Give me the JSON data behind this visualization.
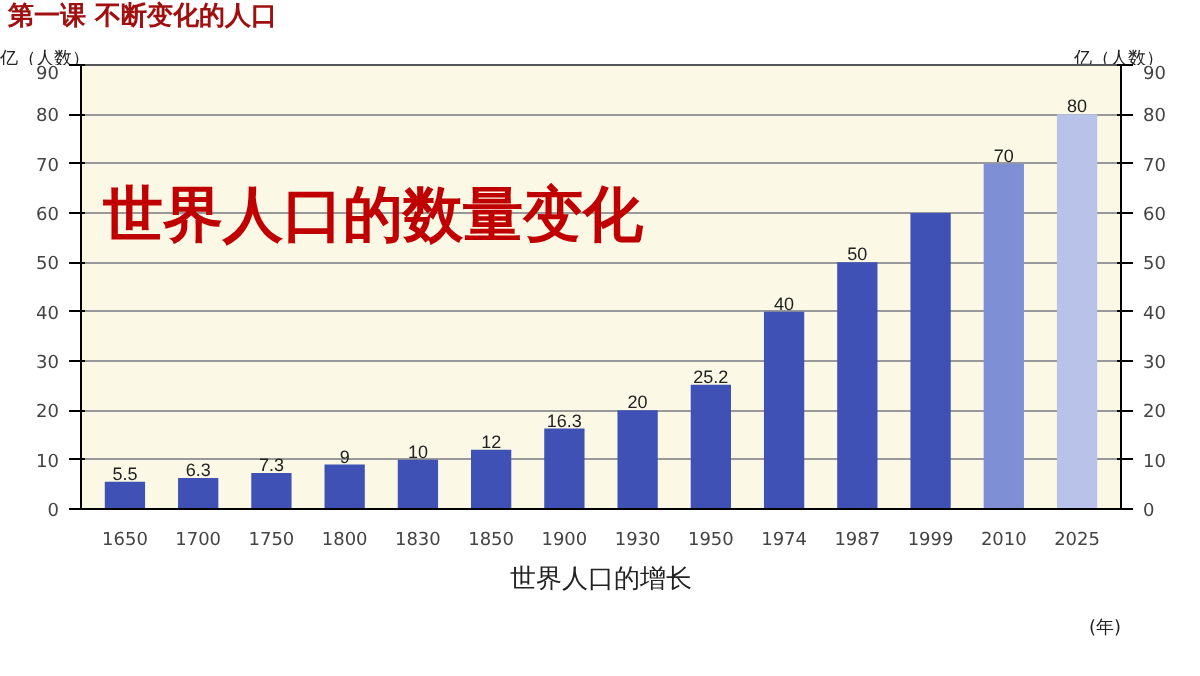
{
  "chart_data": {
    "type": "bar",
    "title": "第一课 不断变化的人口",
    "subtitle": "世界人口的数量变化",
    "categories": [
      "1650",
      "1700",
      "1750",
      "1800",
      "1830",
      "1850",
      "1900",
      "1930",
      "1950",
      "1974",
      "1987",
      "1999",
      "2010",
      "2025"
    ],
    "values": [
      5.5,
      6.3,
      7.3,
      9,
      10,
      12,
      16.3,
      20,
      25.2,
      40,
      50,
      60,
      70,
      80
    ],
    "value_labels": [
      "5.5",
      "6.3",
      "7.3",
      "9",
      "10",
      "12",
      "16.3",
      "20",
      "25.2",
      "40",
      "50",
      null,
      "70",
      "80"
    ],
    "colors": [
      "#3f51b5",
      "#3f51b5",
      "#3f51b5",
      "#3f51b5",
      "#3f51b5",
      "#3f51b5",
      "#3f51b5",
      "#3f51b5",
      "#3f51b5",
      "#3f51b5",
      "#3f51b5",
      "#3f51b5",
      "#7f8fd6",
      "#b9c3ea"
    ],
    "ylabel": "亿（人数）",
    "y2label": "亿（人数）",
    "xlabel": "(年)",
    "ylim": [
      0,
      90
    ],
    "yticks": [
      0,
      10,
      20,
      30,
      40,
      50,
      60,
      70,
      80,
      90
    ],
    "y2lim": [
      0,
      90
    ],
    "y2ticks": [
      0,
      10,
      20,
      30,
      40,
      50,
      60,
      70,
      80,
      90
    ],
    "grid": "y",
    "annotations": [
      "世界人口的增长"
    ]
  }
}
